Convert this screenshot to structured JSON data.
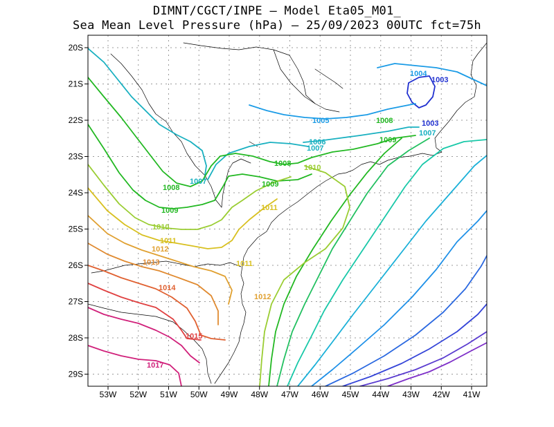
{
  "title_line1": "DIMNT/CGCT/INPE –  Model Eta05_M01_",
  "title_line2": "Sea Mean Level Pressure (hPa) – 25/09/2023 00UTC fct=75h",
  "lon_ticks": [
    "53W",
    "52W",
    "51W",
    "50W",
    "49W",
    "48W",
    "47W",
    "46W",
    "45W",
    "44W",
    "43W",
    "42W",
    "41W"
  ],
  "lat_ticks": [
    "20S",
    "21S",
    "22S",
    "23S",
    "24S",
    "25S",
    "26S",
    "27S",
    "28S",
    "29S"
  ],
  "isobar_labels": [
    {
      "text": "1003",
      "color": "#2030d0"
    },
    {
      "text": "1003",
      "color": "#2030d0"
    },
    {
      "text": "1004",
      "color": "#1a9be6"
    },
    {
      "text": "1005",
      "color": "#1a9be6"
    },
    {
      "text": "1006",
      "color": "#18b0c0"
    },
    {
      "text": "1007",
      "color": "#18b0c0"
    },
    {
      "text": "1007",
      "color": "#18b0c0"
    },
    {
      "text": "1007",
      "color": "#18b0c0"
    },
    {
      "text": "1008",
      "color": "#22b822"
    },
    {
      "text": "1008",
      "color": "#22b822"
    },
    {
      "text": "1008",
      "color": "#22b822"
    },
    {
      "text": "1009",
      "color": "#22b822"
    },
    {
      "text": "1009",
      "color": "#22b822"
    },
    {
      "text": "1009",
      "color": "#22b822"
    },
    {
      "text": "1010",
      "color": "#9acd32"
    },
    {
      "text": "1010",
      "color": "#9acd32"
    },
    {
      "text": "1011",
      "color": "#d8c020"
    },
    {
      "text": "1011",
      "color": "#d8c020"
    },
    {
      "text": "1011",
      "color": "#d8c020"
    },
    {
      "text": "1012",
      "color": "#e0a030"
    },
    {
      "text": "1012",
      "color": "#e0a030"
    },
    {
      "text": "1013",
      "color": "#e08a30"
    },
    {
      "text": "1014",
      "color": "#e06030"
    },
    {
      "text": "1015",
      "color": "#e04040"
    },
    {
      "text": "1017",
      "color": "#d0207a"
    }
  ]
}
